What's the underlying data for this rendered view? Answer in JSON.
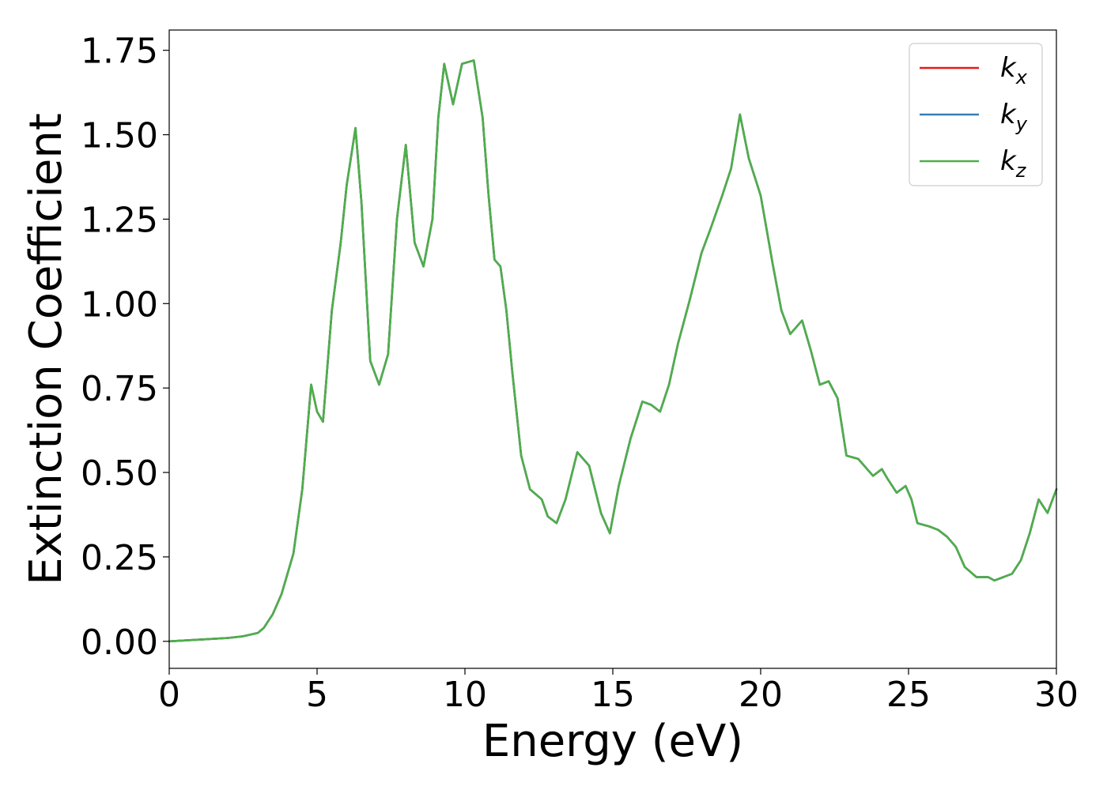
{
  "chart_data": {
    "type": "line",
    "title": "",
    "xlabel": "Energy (eV)",
    "ylabel": "Extinction Coefficient",
    "xlim": [
      0,
      30
    ],
    "ylim": [
      -0.08,
      1.81
    ],
    "xticks": [
      0,
      5,
      10,
      15,
      20,
      25,
      30
    ],
    "xtick_labels": [
      "0",
      "5",
      "10",
      "15",
      "20",
      "25",
      "30"
    ],
    "yticks": [
      0,
      0.25,
      0.5,
      0.75,
      1.0,
      1.25,
      1.5,
      1.75
    ],
    "ytick_labels": [
      "0.00",
      "0.25",
      "0.50",
      "0.75",
      "1.00",
      "1.25",
      "1.50",
      "1.75"
    ],
    "grid": false,
    "legend_position": "top-right",
    "series": [
      {
        "name": "kx",
        "base": "k",
        "sub": "x",
        "color": "#e41a1c"
      },
      {
        "name": "ky",
        "base": "k",
        "sub": "y",
        "color": "#377eb8"
      },
      {
        "name": "kz",
        "base": "k",
        "sub": "z",
        "color": "#4daf4a"
      }
    ],
    "x": [
      0,
      1,
      2,
      2.5,
      3,
      3.2,
      3.5,
      3.8,
      4.2,
      4.5,
      4.8,
      5.0,
      5.2,
      5.5,
      5.8,
      6.0,
      6.3,
      6.5,
      6.8,
      7.1,
      7.4,
      7.7,
      8.0,
      8.3,
      8.6,
      8.9,
      9.1,
      9.3,
      9.6,
      9.9,
      10.3,
      10.6,
      10.8,
      11.0,
      11.2,
      11.4,
      11.6,
      11.9,
      12.2,
      12.6,
      12.8,
      13.1,
      13.4,
      13.8,
      14.2,
      14.6,
      14.9,
      15.2,
      15.6,
      16.0,
      16.3,
      16.6,
      16.9,
      17.2,
      17.6,
      18.0,
      18.3,
      18.7,
      19.0,
      19.3,
      19.6,
      20.0,
      20.4,
      20.7,
      21.0,
      21.4,
      21.7,
      22.0,
      22.3,
      22.6,
      22.9,
      23.3,
      23.5,
      23.8,
      24.1,
      24.3,
      24.6,
      24.9,
      25.1,
      25.3,
      25.7,
      26.0,
      26.3,
      26.6,
      26.9,
      27.3,
      27.7,
      27.9,
      28.2,
      28.5,
      28.8,
      29.1,
      29.4,
      29.7,
      30.0
    ],
    "y": [
      0.0,
      0.005,
      0.01,
      0.015,
      0.025,
      0.04,
      0.08,
      0.14,
      0.26,
      0.45,
      0.76,
      0.68,
      0.65,
      0.98,
      1.18,
      1.35,
      1.52,
      1.3,
      0.83,
      0.76,
      0.85,
      1.25,
      1.47,
      1.18,
      1.11,
      1.25,
      1.55,
      1.71,
      1.59,
      1.71,
      1.72,
      1.55,
      1.32,
      1.13,
      1.11,
      0.98,
      0.8,
      0.55,
      0.45,
      0.42,
      0.37,
      0.35,
      0.42,
      0.56,
      0.52,
      0.38,
      0.32,
      0.46,
      0.6,
      0.71,
      0.7,
      0.68,
      0.76,
      0.88,
      1.01,
      1.15,
      1.22,
      1.32,
      1.4,
      1.56,
      1.43,
      1.32,
      1.12,
      0.98,
      0.91,
      0.95,
      0.86,
      0.76,
      0.77,
      0.72,
      0.55,
      0.54,
      0.52,
      0.49,
      0.51,
      0.48,
      0.44,
      0.46,
      0.42,
      0.35,
      0.34,
      0.33,
      0.31,
      0.28,
      0.22,
      0.19,
      0.19,
      0.18,
      0.19,
      0.2,
      0.24,
      0.32,
      0.42,
      0.38,
      0.45
    ]
  }
}
